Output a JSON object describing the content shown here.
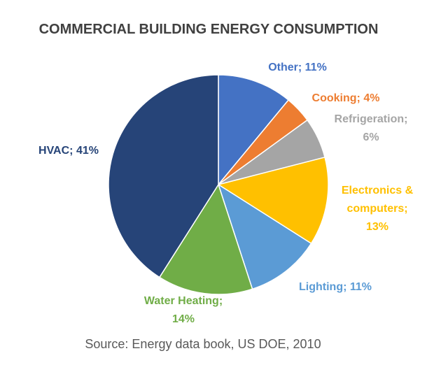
{
  "chart_data": {
    "type": "pie",
    "title": "COMMERCIAL BUILDING ENERGY CONSUMPTION",
    "source": "Source: Energy data book, US DOE, 2010",
    "start_angle": "12 o'clock",
    "direction": "clockwise",
    "slices": [
      {
        "name": "Other",
        "value": 11,
        "label": [
          "Other; 11%"
        ],
        "color": "#4472C4"
      },
      {
        "name": "Cooking",
        "value": 4,
        "label": [
          "Cooking; 4%"
        ],
        "color": "#ED7D31"
      },
      {
        "name": "Refrigeration",
        "value": 6,
        "label": [
          "Refrigeration;",
          "6%"
        ],
        "color": "#A5A5A5"
      },
      {
        "name": "Electronics & computers",
        "value": 13,
        "label": [
          "Electronics &",
          "computers;",
          "13%"
        ],
        "color": "#FFC000"
      },
      {
        "name": "Lighting",
        "value": 11,
        "label": [
          "Lighting; 11%"
        ],
        "color": "#5B9BD5"
      },
      {
        "name": "Water Heating",
        "value": 14,
        "label": [
          "Water Heating;",
          "14%"
        ],
        "color": "#70AD47"
      },
      {
        "name": "HVAC",
        "value": 41,
        "label": [
          "HVAC; 41%"
        ],
        "color": "#264478"
      }
    ]
  }
}
